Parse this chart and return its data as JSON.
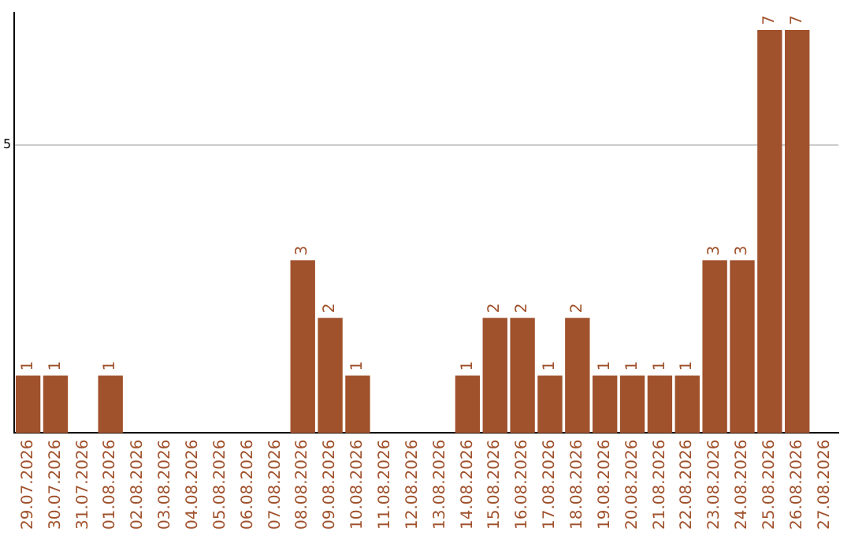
{
  "chart_data": {
    "type": "bar",
    "categories": [
      "29.07.2026",
      "30.07.2026",
      "31.07.2026",
      "01.08.2026",
      "02.08.2026",
      "03.08.2026",
      "04.08.2026",
      "05.08.2026",
      "06.08.2026",
      "07.08.2026",
      "08.08.2026",
      "09.08.2026",
      "10.08.2026",
      "11.08.2026",
      "12.08.2026",
      "13.08.2026",
      "14.08.2026",
      "15.08.2026",
      "16.08.2026",
      "17.08.2026",
      "18.08.2026",
      "19.08.2026",
      "20.08.2026",
      "21.08.2026",
      "22.08.2026",
      "23.08.2026",
      "24.08.2026",
      "25.08.2026",
      "26.08.2026",
      "27.08.2026"
    ],
    "values": [
      1,
      1,
      0,
      1,
      0,
      0,
      0,
      0,
      0,
      0,
      3,
      2,
      1,
      0,
      0,
      0,
      1,
      2,
      2,
      1,
      2,
      1,
      1,
      1,
      1,
      3,
      3,
      7,
      7,
      0
    ],
    "value_labels": [
      "1",
      "1",
      null,
      "1",
      null,
      null,
      null,
      null,
      null,
      null,
      "3",
      "2",
      "1",
      null,
      null,
      null,
      "1",
      "2",
      "2",
      "1",
      "2",
      "1",
      "1",
      "1",
      "1",
      "3",
      "3",
      "7",
      "7",
      null
    ],
    "color": "#a0522d",
    "ylim": [
      0,
      7.3
    ],
    "yticks": [
      5
    ],
    "grid": "y",
    "legend": false
  }
}
